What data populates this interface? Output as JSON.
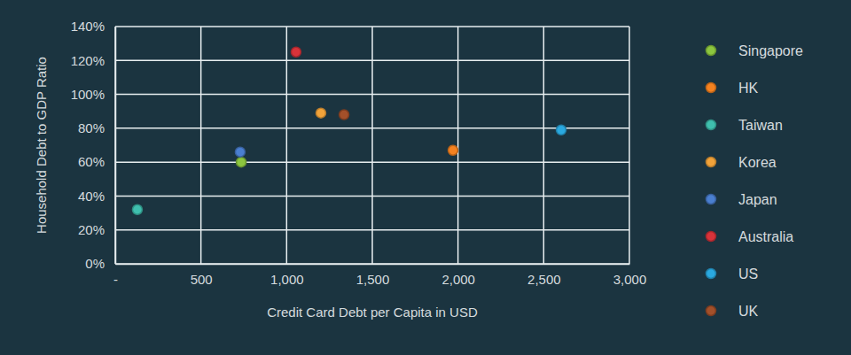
{
  "chart_data": {
    "type": "scatter",
    "x_label": "Credit Card Debt per Capita in USD",
    "y_label": "Household Debt to GDP Ratio",
    "xlim": [
      0,
      3000
    ],
    "xticks": [
      {
        "value": 0,
        "label": "-"
      },
      500,
      {
        "value": 1000,
        "label": "1,000"
      },
      {
        "value": 1500,
        "label": "1,500"
      },
      {
        "value": 2000,
        "label": "2,000"
      },
      {
        "value": 2500,
        "label": "2,500"
      },
      {
        "value": 3000,
        "label": "3,000"
      }
    ],
    "ylim": [
      0,
      140
    ],
    "yticks": [
      {
        "value": 0,
        "label": "0%"
      },
      {
        "value": 20,
        "label": "20%"
      },
      {
        "value": 40,
        "label": "40%"
      },
      {
        "value": 60,
        "label": "60%"
      },
      {
        "value": 80,
        "label": "80%"
      },
      {
        "value": 100,
        "label": "100%"
      },
      {
        "value": 120,
        "label": "120%"
      },
      {
        "value": 140,
        "label": "140%"
      }
    ],
    "grid": true,
    "legend": "right",
    "marker": "circle",
    "series": [
      {
        "name": "Singapore",
        "color": "#8cc63f",
        "x": [
          735
        ],
        "values": [
          60
        ]
      },
      {
        "name": "HK",
        "color": "#f58220",
        "x": [
          1971
        ],
        "values": [
          67
        ]
      },
      {
        "name": "Taiwan",
        "color": "#3fbfae",
        "x": [
          129
        ],
        "values": [
          32
        ]
      },
      {
        "name": "Korea",
        "color": "#f2a33a",
        "x": [
          1200
        ],
        "values": [
          89
        ]
      },
      {
        "name": "Japan",
        "color": "#4a7fd0",
        "x": [
          729
        ],
        "values": [
          66
        ]
      },
      {
        "name": "Australia",
        "color": "#d8333a",
        "x": [
          1055
        ],
        "values": [
          125
        ]
      },
      {
        "name": "US",
        "color": "#2aa9e0",
        "x": [
          2602
        ],
        "values": [
          79
        ]
      },
      {
        "name": "UK",
        "color": "#a3502a",
        "x": [
          1335
        ],
        "values": [
          88
        ]
      }
    ]
  }
}
